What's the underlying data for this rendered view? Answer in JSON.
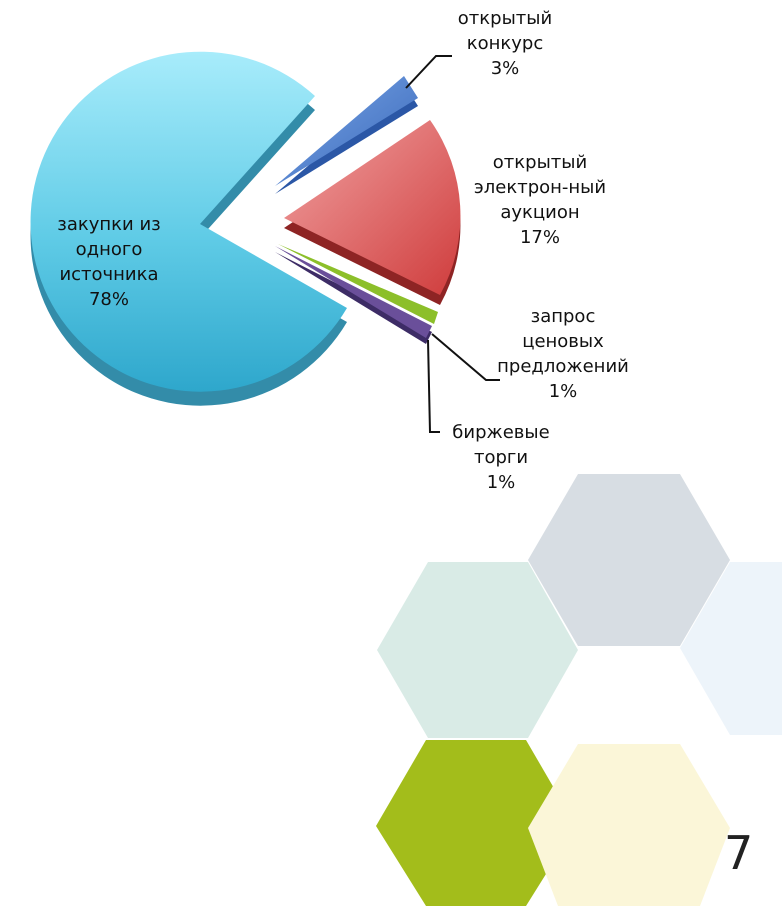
{
  "chart_data": {
    "type": "pie",
    "slices": [
      {
        "label": "закупки из одного источника",
        "value": 78,
        "value_label": "78%",
        "color": "#3fb6d8"
      },
      {
        "label": "открытый конкурс",
        "value": 3,
        "value_label": "3%",
        "color": "#4a7fd0"
      },
      {
        "label": "открытый электрон-ный аукцион",
        "value": 17,
        "value_label": "17%",
        "color": "#d44a4a"
      },
      {
        "label": "запрос ценовых предложений",
        "value": 1,
        "value_label": "1%",
        "color": "#8cbf2a"
      },
      {
        "label": "биржевые торги",
        "value": 1,
        "value_label": "1%",
        "color": "#6a4f9a"
      }
    ]
  },
  "labels": {
    "source": [
      "закупки из",
      "одного",
      "источника",
      "78%"
    ],
    "contest": [
      "открытый",
      "конкурс",
      "3%"
    ],
    "auction": [
      "открытый",
      "электрон-ный",
      "аукцион",
      "17%"
    ],
    "quote": [
      "запрос",
      "ценовых",
      "предложений",
      "1%"
    ],
    "exchange": [
      "биржевые",
      "торги",
      "1%"
    ]
  },
  "page_number": "7",
  "decor_colors": [
    "#d7dde3",
    "#d9ebe6",
    "#edf4fa",
    "#a3bd1b",
    "#fbf6d8"
  ]
}
